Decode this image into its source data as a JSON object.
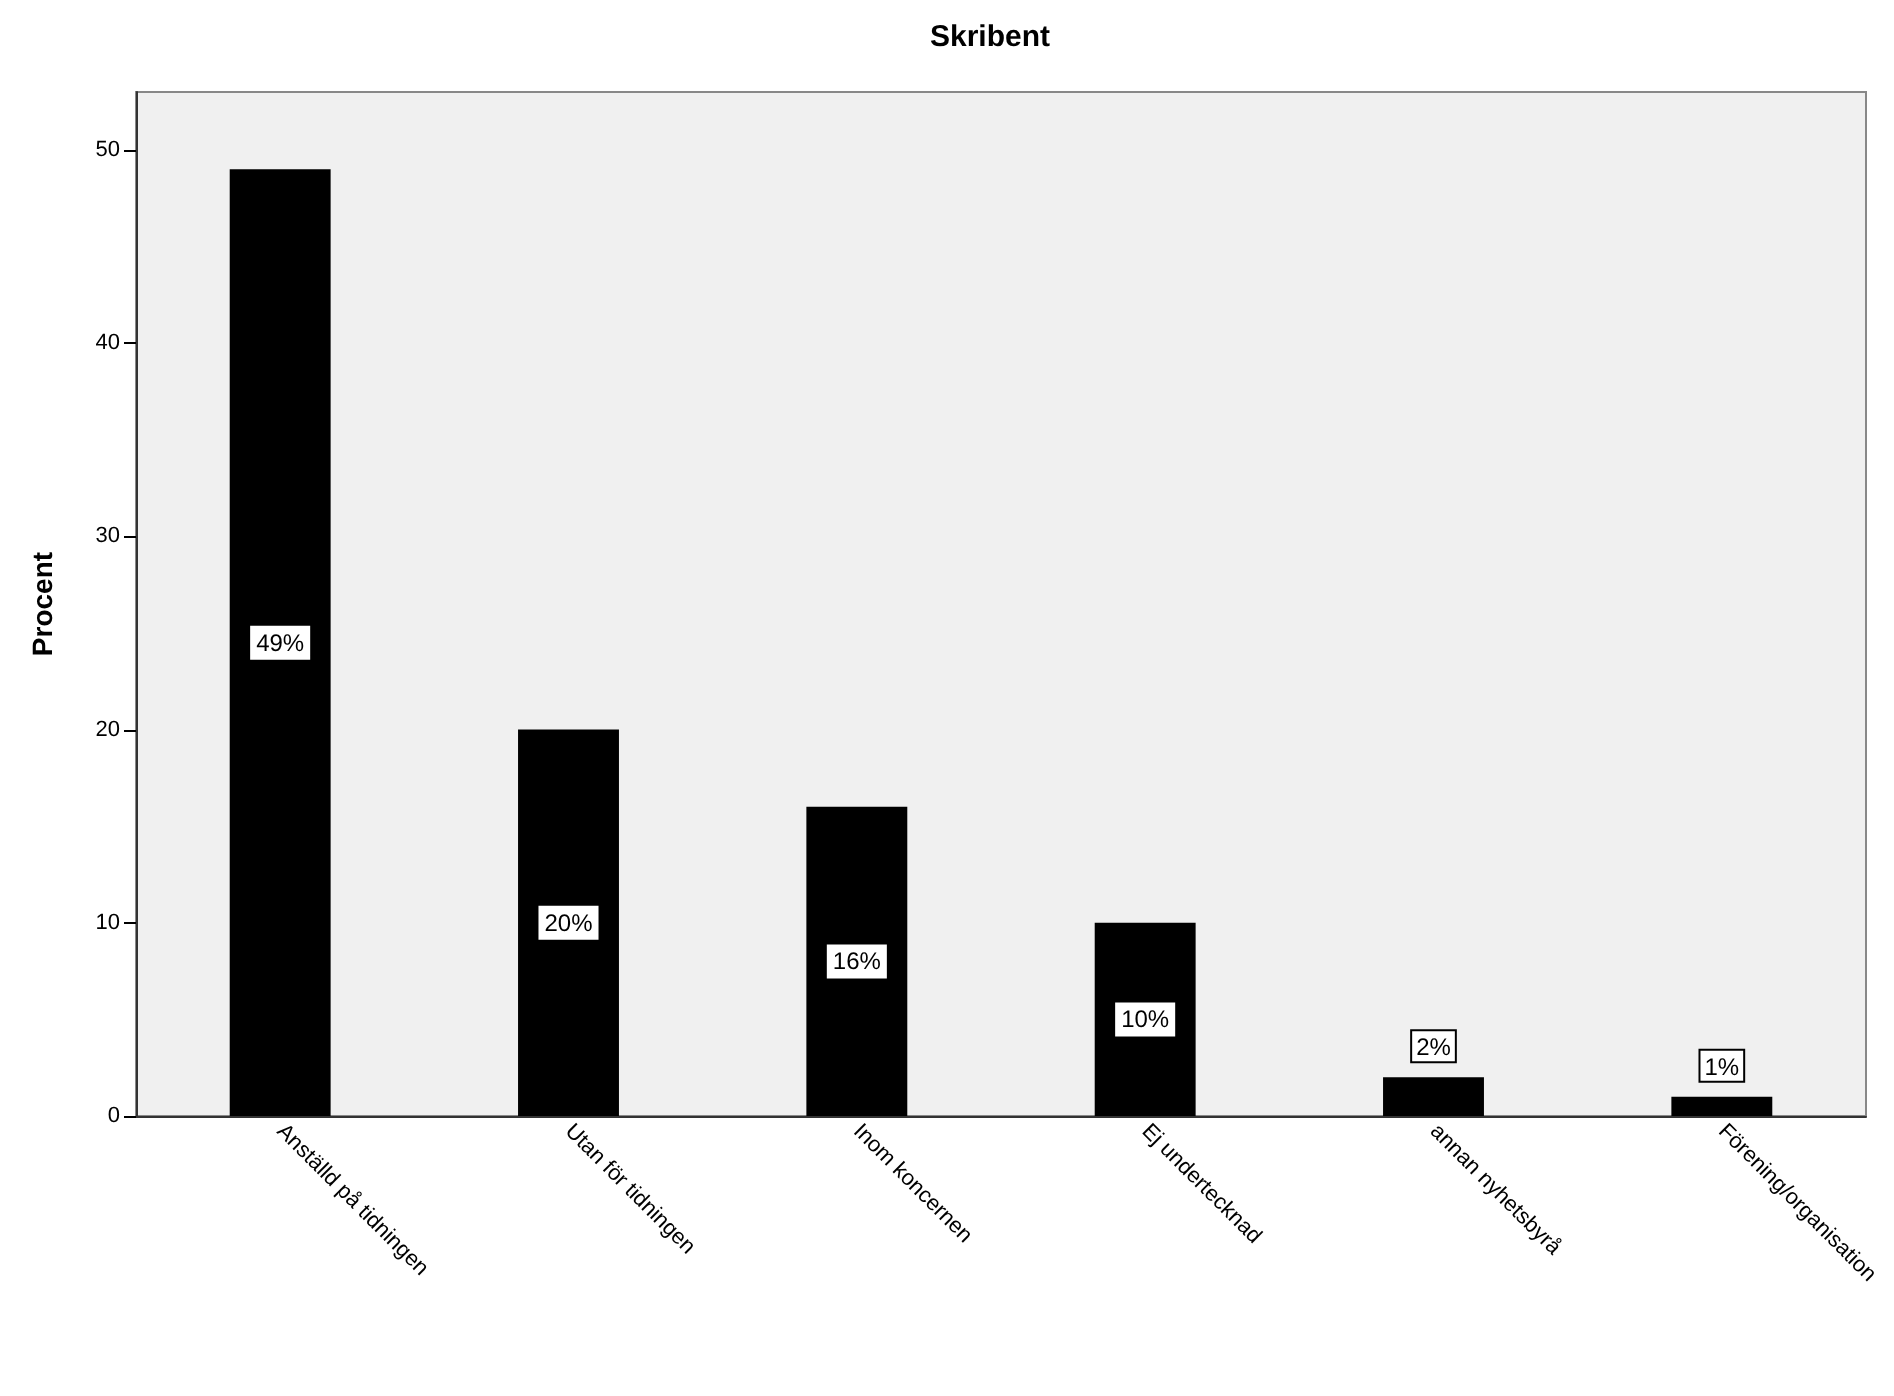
{
  "chart_data": {
    "type": "bar",
    "title": "Skribent",
    "ylabel": "Procent",
    "categories": [
      "Anställd på tidningen",
      "Utan för tidningen",
      "Inom koncernen",
      "Ej undertecknad",
      "annan nyhetsbyrå",
      "Förening/organisation"
    ],
    "values": [
      49,
      20,
      16,
      10,
      2,
      1
    ],
    "color": "#000000",
    "value_labels": [
      "49%",
      "20%",
      "16%",
      "10%",
      "2%",
      "1%"
    ],
    "ylim": [
      0,
      53
    ],
    "yticks": [
      0,
      10,
      20,
      30,
      40,
      50
    ],
    "grid": false
  }
}
